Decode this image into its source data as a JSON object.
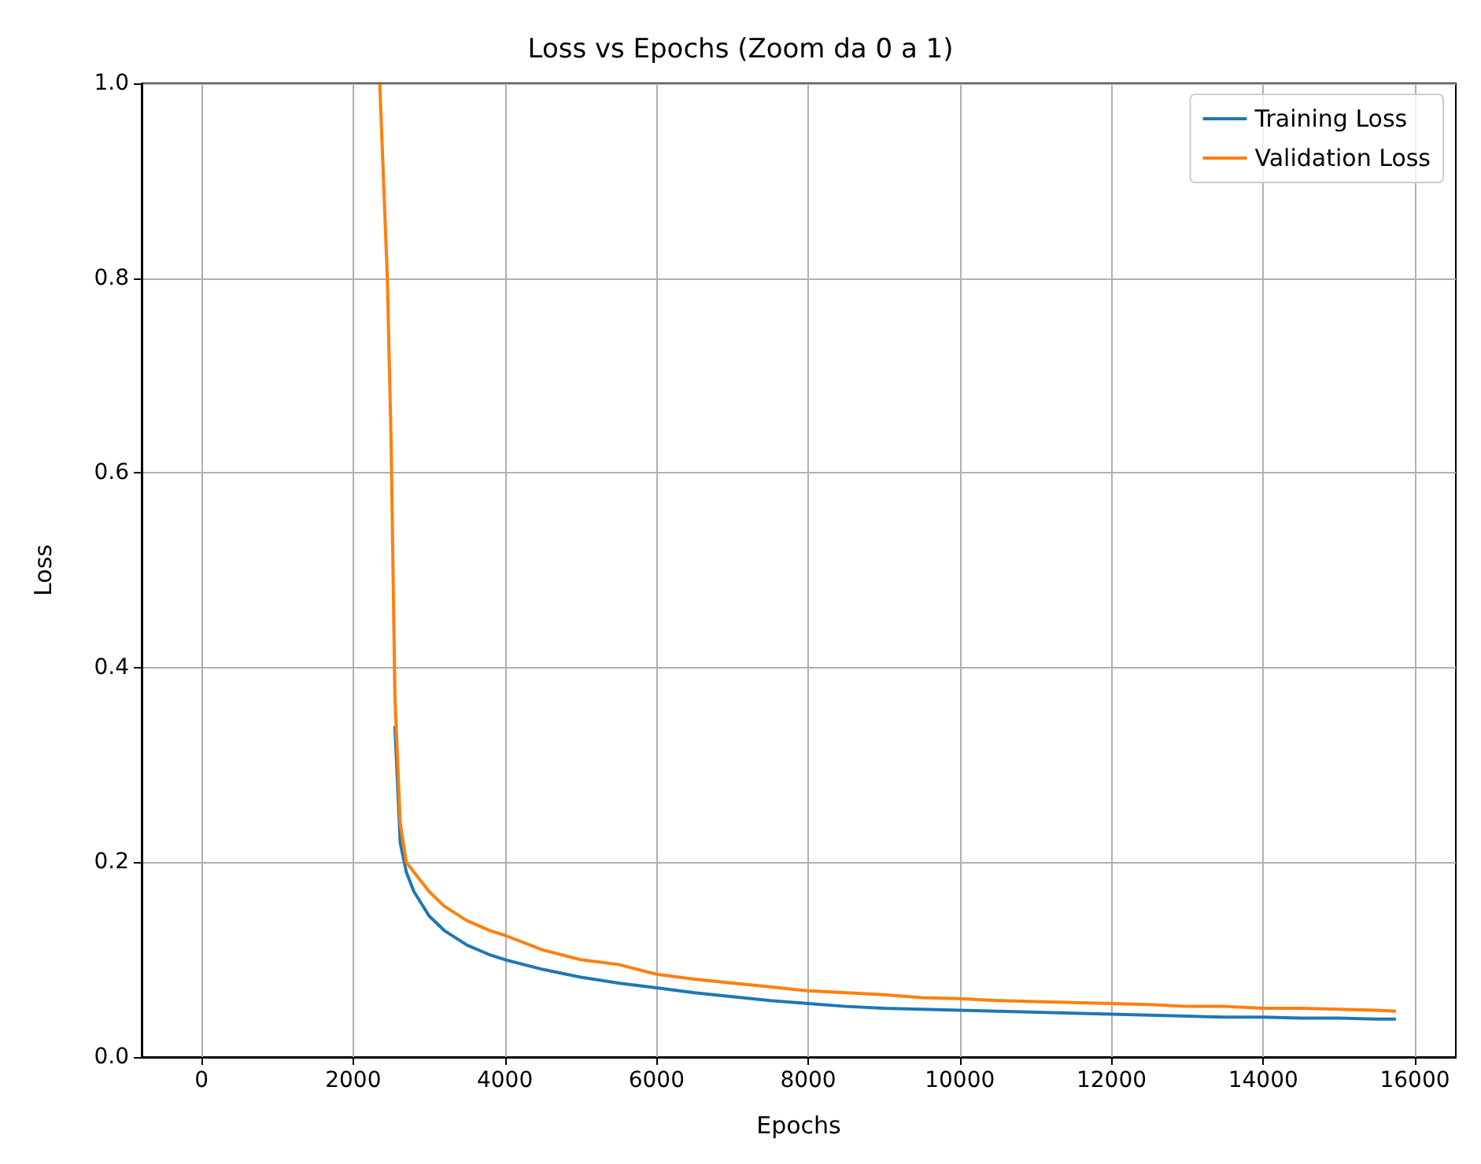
{
  "chart_data": {
    "type": "line",
    "title": "Loss vs Epochs (Zoom da 0 a 1)",
    "xlabel": "Epochs",
    "ylabel": "Loss",
    "x": [
      2350,
      2450,
      2500,
      2550,
      2620,
      2700,
      2800,
      3000,
      3200,
      3500,
      3800,
      4000,
      4500,
      5000,
      5500,
      6000,
      6500,
      7000,
      7500,
      8000,
      8500,
      9000,
      9500,
      10000,
      10500,
      11000,
      11500,
      12000,
      12500,
      13000,
      13500,
      14000,
      14500,
      15000,
      15500,
      15750
    ],
    "series": [
      {
        "name": "Training Loss",
        "color": "#1f77b4",
        "values": [
          null,
          null,
          null,
          0.34,
          0.22,
          0.19,
          0.17,
          0.145,
          0.13,
          0.115,
          0.105,
          0.1,
          0.09,
          0.082,
          0.076,
          0.071,
          0.066,
          0.062,
          0.058,
          0.055,
          0.052,
          0.05,
          0.049,
          0.048,
          0.047,
          0.046,
          0.045,
          0.044,
          0.043,
          0.042,
          0.041,
          0.041,
          0.04,
          0.04,
          0.039,
          0.039
        ]
      },
      {
        "name": "Validation Loss",
        "color": "#ff7f0e",
        "values": [
          1.0,
          0.8,
          0.63,
          0.37,
          0.24,
          0.2,
          0.19,
          0.17,
          0.155,
          0.14,
          0.13,
          0.125,
          0.11,
          0.1,
          0.095,
          0.085,
          0.08,
          0.076,
          0.072,
          0.068,
          0.066,
          0.064,
          0.061,
          0.06,
          0.058,
          0.057,
          0.056,
          0.055,
          0.054,
          0.052,
          0.052,
          0.05,
          0.05,
          0.049,
          0.048,
          0.047
        ]
      }
    ],
    "xlim": [
      -790,
      16540
    ],
    "xticks": [
      0,
      2000,
      4000,
      6000,
      8000,
      10000,
      12000,
      14000,
      16000
    ],
    "ylim": [
      0,
      1
    ],
    "yticks": [
      {
        "value": 0,
        "label": "0.0"
      },
      {
        "value": 0.2,
        "label": "0.2"
      },
      {
        "value": 0.4,
        "label": "0.4"
      },
      {
        "value": 0.6,
        "label": "0.6"
      },
      {
        "value": 0.8,
        "label": "0.8"
      },
      {
        "value": 1,
        "label": "1.0"
      }
    ],
    "grid": true,
    "legend": "top right",
    "marker": "none",
    "line_style": "solid"
  }
}
